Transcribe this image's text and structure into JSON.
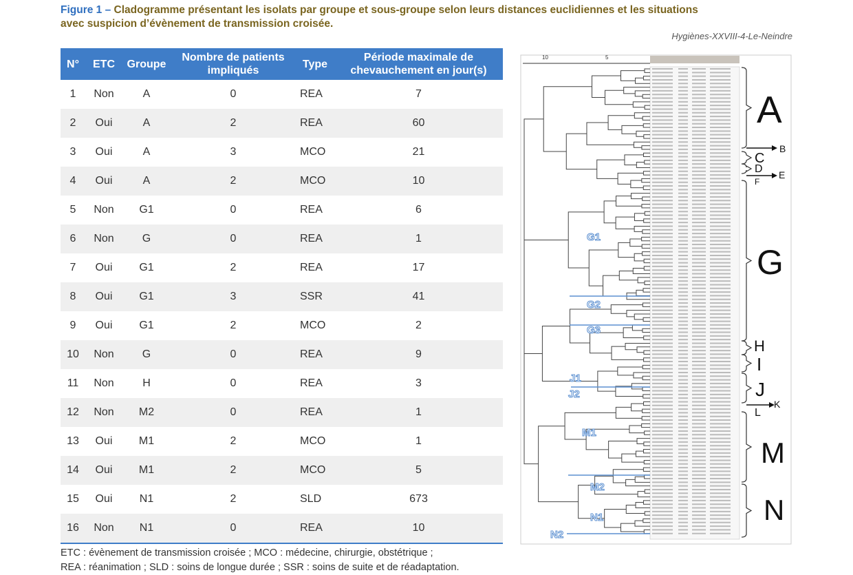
{
  "header": {
    "label": "Figure 1 –",
    "title_line1": "Cladogramme présentant les isolats par groupe et sous-groupe selon leurs distances euclidiennes et les situations",
    "title_line2": "avec suspicion d’évènement de transmission croisée.",
    "source": "Hygiènes-XXVIII-4-Le-Neindre"
  },
  "table": {
    "headers": [
      "N°",
      "ETC",
      "Groupe",
      "Nombre de patients impliqués",
      "Type",
      "Période maximale de chevauchement en jour(s)"
    ],
    "rows": [
      [
        "1",
        "Non",
        "A",
        "0",
        "REA",
        "7"
      ],
      [
        "2",
        "Oui",
        "A",
        "2",
        "REA",
        "60"
      ],
      [
        "3",
        "Oui",
        "A",
        "3",
        "MCO",
        "21"
      ],
      [
        "4",
        "Oui",
        "A",
        "2",
        "MCO",
        "10"
      ],
      [
        "5",
        "Non",
        "G1",
        "0",
        "REA",
        "6"
      ],
      [
        "6",
        "Non",
        "G",
        "0",
        "REA",
        "1"
      ],
      [
        "7",
        "Oui",
        "G1",
        "2",
        "REA",
        "17"
      ],
      [
        "8",
        "Oui",
        "G1",
        "3",
        "SSR",
        "41"
      ],
      [
        "9",
        "Oui",
        "G1",
        "2",
        "MCO",
        "2"
      ],
      [
        "10",
        "Non",
        "G",
        "0",
        "REA",
        "9"
      ],
      [
        "11",
        "Non",
        "H",
        "0",
        "REA",
        "3"
      ],
      [
        "12",
        "Non",
        "M2",
        "0",
        "REA",
        "1"
      ],
      [
        "13",
        "Oui",
        "M1",
        "2",
        "MCO",
        "1"
      ],
      [
        "14",
        "Oui",
        "M1",
        "2",
        "MCO",
        "5"
      ],
      [
        "15",
        "Oui",
        "N1",
        "2",
        "SLD",
        "673"
      ],
      [
        "16",
        "Non",
        "N1",
        "0",
        "REA",
        "10"
      ]
    ]
  },
  "footnote": {
    "line1": "ETC : évènement de transmission croisée ; MCO : médecine, chirurgie, obstétrique ;",
    "line2": "REA : réanimation ; SLD : soins de longue durée ; SSR : soins de suite et de réadaptation."
  },
  "cladogram": {
    "scale": [
      "10",
      "5"
    ],
    "groups": [
      "A",
      "B",
      "C",
      "D",
      "E",
      "F",
      "G",
      "H",
      "I",
      "J",
      "K",
      "L",
      "M",
      "N"
    ],
    "subgroups": [
      "G1",
      "G2",
      "G3",
      "J1",
      "J2",
      "M1",
      "M2",
      "N1",
      "N2"
    ]
  }
}
